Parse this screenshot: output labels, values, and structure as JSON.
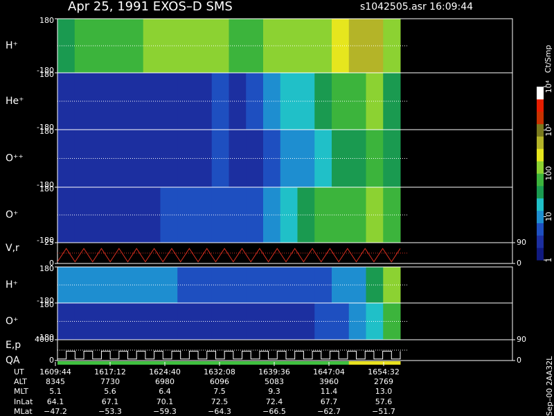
{
  "header": {
    "title": "Apr 25, 1991    EXOS–D SMS",
    "file": "s1042505.asr  16:09:44"
  },
  "chart_data": {
    "type": "spectrogram",
    "colorbar": {
      "label": "Ct/Smp",
      "ylim": [
        1,
        10000
      ],
      "log": true,
      "yticks": [
        1,
        10,
        100,
        {
          "value": 1000,
          "label": "10³"
        },
        {
          "value": 10000,
          "label": "10⁴"
        }
      ],
      "colors": [
        "#101a80",
        "#1c2fa0",
        "#1e4fc0",
        "#1e8ed0",
        "#20c0c8",
        "#1a9a50",
        "#3cb43c",
        "#8cd232",
        "#e6e61e",
        "#b4b428",
        "#7a7a1e",
        "#c83200",
        "#e61e00",
        "#ffffff"
      ]
    },
    "panels": [
      {
        "label": "H⁺",
        "ylim": [
          -180,
          180
        ],
        "yticks": [
          -180,
          180
        ],
        "values": [
          1.6,
          1.7,
          1.7,
          1.8,
          1.8,
          2.0,
          2.1,
          2.2,
          2.2,
          2.1,
          1.8,
          1.9,
          2.0,
          2.1,
          2.2,
          2.3,
          2.5,
          2.7,
          2.8,
          2.0
        ]
      },
      {
        "label": "He⁺",
        "ylim": [
          -180,
          180
        ],
        "yticks": [
          -180,
          180
        ],
        "values": [
          0.3,
          0.3,
          0.3,
          0.3,
          0.3,
          0.3,
          0.3,
          0.4,
          0.4,
          0.6,
          0.4,
          0.6,
          0.8,
          1.1,
          1.3,
          1.5,
          1.7,
          1.9,
          2.0,
          1.6
        ]
      },
      {
        "label": "O⁺⁺",
        "ylim": [
          -180,
          180
        ],
        "yticks": [
          -180,
          180
        ],
        "values": [
          0.2,
          0.2,
          0.2,
          0.2,
          0.2,
          0.2,
          0.3,
          0.3,
          0.3,
          0.5,
          0.3,
          0.4,
          0.6,
          0.8,
          1.0,
          1.2,
          1.4,
          1.6,
          1.8,
          1.5
        ]
      },
      {
        "label": "O⁺",
        "ylim": [
          -180,
          180
        ],
        "yticks": [
          -180,
          180
        ],
        "values": [
          0.4,
          0.4,
          0.3,
          0.3,
          0.4,
          0.4,
          0.5,
          0.5,
          0.5,
          0.7,
          0.5,
          0.7,
          1.0,
          1.3,
          1.5,
          1.7,
          1.8,
          1.9,
          2.0,
          1.8
        ]
      },
      {
        "label": "H⁺",
        "ylim": [
          -180,
          180
        ],
        "yticks": [
          -180,
          180
        ],
        "values": [
          0.8,
          1.0,
          0.9,
          0.9,
          0.8,
          0.8,
          0.8,
          0.7,
          0.7,
          0.7,
          0.6,
          0.6,
          0.6,
          0.6,
          0.6,
          0.7,
          0.8,
          1.0,
          1.4,
          2.0
        ]
      },
      {
        "label": "O⁺",
        "ylim": [
          -180,
          180
        ],
        "yticks": [
          -180,
          180
        ],
        "values": [
          0.3,
          0.3,
          0.3,
          0.3,
          0.3,
          0.3,
          0.3,
          0.3,
          0.3,
          0.3,
          0.3,
          0.3,
          0.3,
          0.4,
          0.4,
          0.5,
          0.6,
          0.8,
          1.1,
          1.9
        ]
      }
    ],
    "vr": {
      "label": "V,r",
      "ylim": [
        0,
        25
      ],
      "yticks": [
        0,
        25
      ],
      "y2lim": [
        0,
        90
      ],
      "y2ticks": [
        0,
        90
      ],
      "color": "#e03020",
      "values": [
        2,
        18,
        2,
        18,
        2,
        18,
        2,
        18,
        2,
        18,
        2,
        18,
        2,
        18,
        2,
        18,
        2,
        18,
        2,
        18,
        2,
        18,
        2,
        18,
        2,
        18,
        2,
        18,
        2,
        18,
        2,
        18,
        2,
        18,
        2,
        18,
        2,
        18,
        2,
        18
      ]
    },
    "ep": {
      "label": "E,p",
      "ylim": [
        0,
        4000
      ],
      "yticks": [
        0,
        4000
      ],
      "y2lim": [
        0,
        90
      ],
      "y2ticks": [
        0,
        90
      ],
      "color": "#ffffff",
      "values": [
        300,
        1800,
        300,
        1800,
        300,
        1800,
        300,
        1800,
        300,
        1800,
        300,
        1800,
        300,
        1800,
        300,
        1800,
        300,
        1800,
        300,
        1800,
        300,
        1800,
        300,
        1800,
        300,
        1800,
        300,
        1800,
        300,
        1800,
        300,
        1800,
        300,
        1800,
        300,
        1800,
        300,
        1800,
        300,
        1800
      ]
    },
    "qa": {
      "label": "QA",
      "colors": [
        "#40c040",
        "#e8e020"
      ],
      "values": [
        0,
        0,
        0,
        0,
        0,
        0,
        0,
        0,
        0,
        0,
        0,
        0,
        0,
        0,
        0,
        0,
        0,
        1,
        1,
        1
      ]
    }
  },
  "orbit_table": {
    "rows": [
      {
        "label": "UT",
        "cells": [
          "1609:44",
          "1617:12",
          "1624:40",
          "1632:08",
          "1639:36",
          "1647:04",
          "1654:32"
        ]
      },
      {
        "label": "ALT",
        "cells": [
          "8345",
          "7730",
          "6980",
          "6096",
          "5083",
          "3960",
          "2769"
        ]
      },
      {
        "label": "MLT",
        "cells": [
          "5.1",
          "5.6",
          "6.4",
          "7.5",
          "9.3",
          "11.4",
          "13.0"
        ]
      },
      {
        "label": "InLat",
        "cells": [
          "64.1",
          "67.1",
          "70.1",
          "72.5",
          "72.4",
          "67.7",
          "57.6"
        ]
      },
      {
        "label": "MLat",
        "cells": [
          "−47.2",
          "−53.3",
          "−59.3",
          "−64.3",
          "−66.5",
          "−62.7",
          "−51.7"
        ]
      }
    ]
  },
  "footer": "Sep–00  2AA32L"
}
